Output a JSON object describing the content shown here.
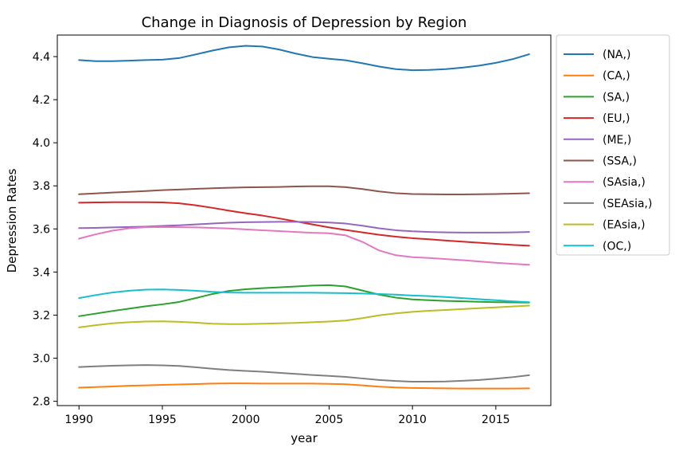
{
  "chart_data": {
    "type": "line",
    "title": "Change in Diagnosis of Depression by Region",
    "xlabel": "year",
    "ylabel": "Depression Rates",
    "xlim": [
      1988.7,
      2018.3
    ],
    "ylim": [
      2.78,
      4.5
    ],
    "xticks": [
      1990,
      1995,
      2000,
      2005,
      2010,
      2015
    ],
    "yticks": [
      "2.8",
      "3.0",
      "3.2",
      "3.4",
      "3.6",
      "3.8",
      "4.0",
      "4.2",
      "4.4"
    ],
    "grid": false,
    "legend_position": "outside-right",
    "x": [
      1990,
      1991,
      1992,
      1993,
      1994,
      1995,
      1996,
      1997,
      1998,
      1999,
      2000,
      2001,
      2002,
      2003,
      2004,
      2005,
      2006,
      2007,
      2008,
      2009,
      2010,
      2011,
      2012,
      2013,
      2014,
      2015,
      2016,
      2017
    ],
    "series": [
      {
        "name": "(NA,)",
        "color": "#1f77b4",
        "values": [
          4.384,
          4.379,
          4.379,
          4.381,
          4.384,
          4.386,
          4.393,
          4.41,
          4.428,
          4.443,
          4.45,
          4.447,
          4.433,
          4.414,
          4.398,
          4.39,
          4.383,
          4.369,
          4.354,
          4.342,
          4.337,
          4.338,
          4.342,
          4.349,
          4.358,
          4.371,
          4.388,
          4.411
        ]
      },
      {
        "name": "(CA,)",
        "color": "#ff7f0e",
        "values": [
          2.863,
          2.866,
          2.869,
          2.872,
          2.874,
          2.876,
          2.878,
          2.88,
          2.882,
          2.883,
          2.883,
          2.882,
          2.882,
          2.882,
          2.882,
          2.881,
          2.879,
          2.874,
          2.868,
          2.864,
          2.862,
          2.861,
          2.86,
          2.859,
          2.859,
          2.859,
          2.859,
          2.86
        ]
      },
      {
        "name": "(SA,)",
        "color": "#2ca02c",
        "values": [
          3.195,
          3.207,
          3.219,
          3.23,
          3.241,
          3.25,
          3.261,
          3.279,
          3.298,
          3.312,
          3.32,
          3.325,
          3.329,
          3.333,
          3.337,
          3.339,
          3.333,
          3.314,
          3.295,
          3.281,
          3.273,
          3.269,
          3.266,
          3.264,
          3.262,
          3.26,
          3.259,
          3.258
        ]
      },
      {
        "name": "(EU,)",
        "color": "#d62728",
        "values": [
          3.722,
          3.723,
          3.724,
          3.724,
          3.724,
          3.723,
          3.719,
          3.71,
          3.698,
          3.685,
          3.673,
          3.662,
          3.649,
          3.635,
          3.621,
          3.607,
          3.595,
          3.584,
          3.573,
          3.564,
          3.557,
          3.552,
          3.546,
          3.541,
          3.536,
          3.531,
          3.526,
          3.522
        ]
      },
      {
        "name": "(ME,)",
        "color": "#9467bd",
        "values": [
          3.604,
          3.605,
          3.607,
          3.609,
          3.611,
          3.614,
          3.617,
          3.621,
          3.625,
          3.629,
          3.631,
          3.632,
          3.633,
          3.633,
          3.632,
          3.63,
          3.625,
          3.615,
          3.603,
          3.594,
          3.589,
          3.586,
          3.584,
          3.583,
          3.583,
          3.583,
          3.584,
          3.586
        ]
      },
      {
        "name": "(SSA,)",
        "color": "#8c564b",
        "values": [
          3.761,
          3.765,
          3.769,
          3.772,
          3.776,
          3.78,
          3.783,
          3.786,
          3.789,
          3.791,
          3.793,
          3.794,
          3.795,
          3.797,
          3.798,
          3.798,
          3.794,
          3.785,
          3.774,
          3.766,
          3.762,
          3.761,
          3.76,
          3.76,
          3.761,
          3.762,
          3.764,
          3.766
        ]
      },
      {
        "name": "(SAsia,)",
        "color": "#e377c2",
        "values": [
          3.555,
          3.575,
          3.592,
          3.603,
          3.608,
          3.609,
          3.608,
          3.607,
          3.605,
          3.602,
          3.598,
          3.594,
          3.59,
          3.586,
          3.582,
          3.58,
          3.57,
          3.54,
          3.5,
          3.478,
          3.469,
          3.465,
          3.46,
          3.455,
          3.449,
          3.443,
          3.438,
          3.434
        ]
      },
      {
        "name": "(SEAsia,)",
        "color": "#7f7f7f",
        "values": [
          2.959,
          2.962,
          2.965,
          2.967,
          2.968,
          2.967,
          2.964,
          2.958,
          2.951,
          2.945,
          2.941,
          2.937,
          2.932,
          2.927,
          2.922,
          2.918,
          2.913,
          2.906,
          2.899,
          2.894,
          2.891,
          2.891,
          2.892,
          2.895,
          2.899,
          2.905,
          2.912,
          2.921
        ]
      },
      {
        "name": "(EAsia,)",
        "color": "#bcbd22",
        "values": [
          3.143,
          3.153,
          3.162,
          3.167,
          3.17,
          3.171,
          3.169,
          3.165,
          3.16,
          3.158,
          3.158,
          3.16,
          3.162,
          3.164,
          3.167,
          3.17,
          3.175,
          3.186,
          3.199,
          3.208,
          3.215,
          3.22,
          3.224,
          3.228,
          3.232,
          3.236,
          3.24,
          3.244
        ]
      },
      {
        "name": "(OC,)",
        "color": "#17becf",
        "values": [
          3.279,
          3.293,
          3.305,
          3.313,
          3.318,
          3.319,
          3.317,
          3.313,
          3.308,
          3.305,
          3.304,
          3.304,
          3.304,
          3.304,
          3.304,
          3.303,
          3.302,
          3.3,
          3.298,
          3.295,
          3.291,
          3.288,
          3.284,
          3.279,
          3.274,
          3.269,
          3.264,
          3.26
        ]
      }
    ]
  }
}
